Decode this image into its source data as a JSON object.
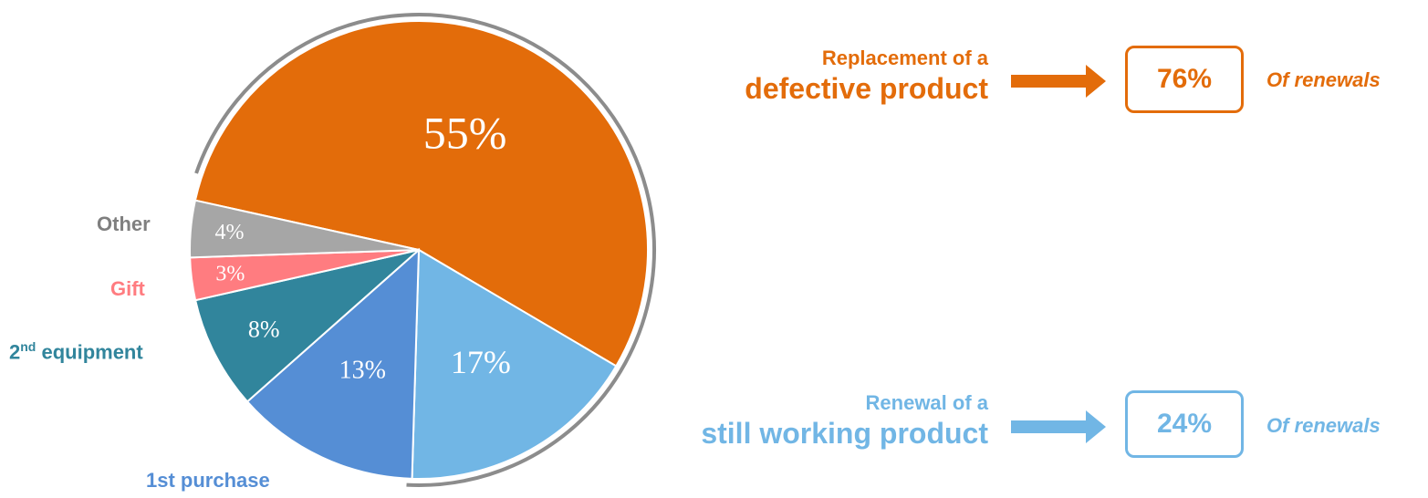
{
  "chart_data": {
    "type": "pie",
    "slices": [
      {
        "category": "",
        "value": 55,
        "label": "55%",
        "color": "#E36C0A"
      },
      {
        "category": "",
        "value": 17,
        "label": "17%",
        "color": "#71B6E5"
      },
      {
        "category": "1st purchase",
        "value": 13,
        "label": "13%",
        "color": "#558ED5"
      },
      {
        "category": "2nd equipment",
        "value": 8,
        "label": "8%",
        "color": "#31859C"
      },
      {
        "category": "Gift",
        "value": 3,
        "label": "3%",
        "color": "#FF7C80"
      },
      {
        "category": "Other",
        "value": 4,
        "label": "4%",
        "color": "#A6A6A6"
      }
    ]
  },
  "annotations": {
    "defective": {
      "line1": "Replacement of a",
      "line2": "defective product",
      "percent": "76%",
      "note": "Of renewals",
      "color": "#E36C0A"
    },
    "working": {
      "line1": "Renewal of a",
      "line2": "still working product",
      "percent": "24%",
      "note": "Of renewals",
      "color": "#71B6E5"
    }
  },
  "category_labels": {
    "other": "Other",
    "gift": "Gift",
    "second_equipment_base": "2",
    "second_equipment_sup": "nd",
    "second_equipment_rest": " equipment",
    "first_purchase": "1st purchase"
  }
}
